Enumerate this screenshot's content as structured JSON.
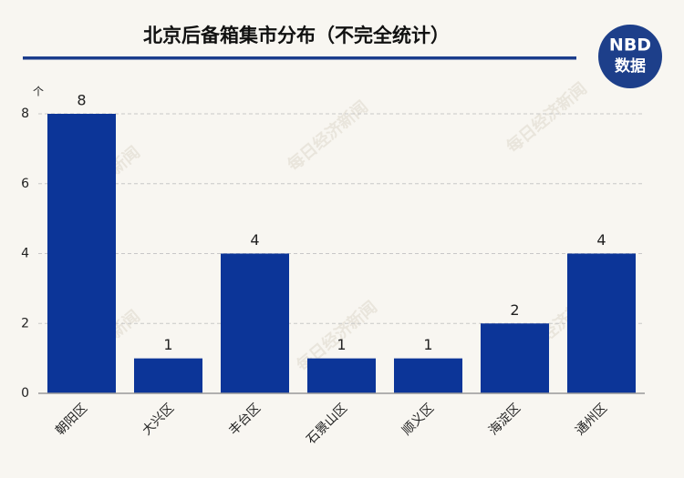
{
  "chart_data": {
    "type": "bar",
    "title": "北京后备箱集市分布（不完全统计）",
    "y_unit": "个",
    "logo": {
      "brand": "NBD",
      "caption": "数据"
    },
    "watermark": "每日经济新闻",
    "categories": [
      "朝阳区",
      "大兴区",
      "丰台区",
      "石景山区",
      "顺义区",
      "海淀区",
      "通州区"
    ],
    "values": [
      8,
      1,
      4,
      1,
      1,
      2,
      4
    ],
    "color": "#0c3598",
    "ylim": [
      0,
      8
    ],
    "yticks": [
      0,
      2,
      4,
      6,
      8
    ],
    "grid": true
  }
}
